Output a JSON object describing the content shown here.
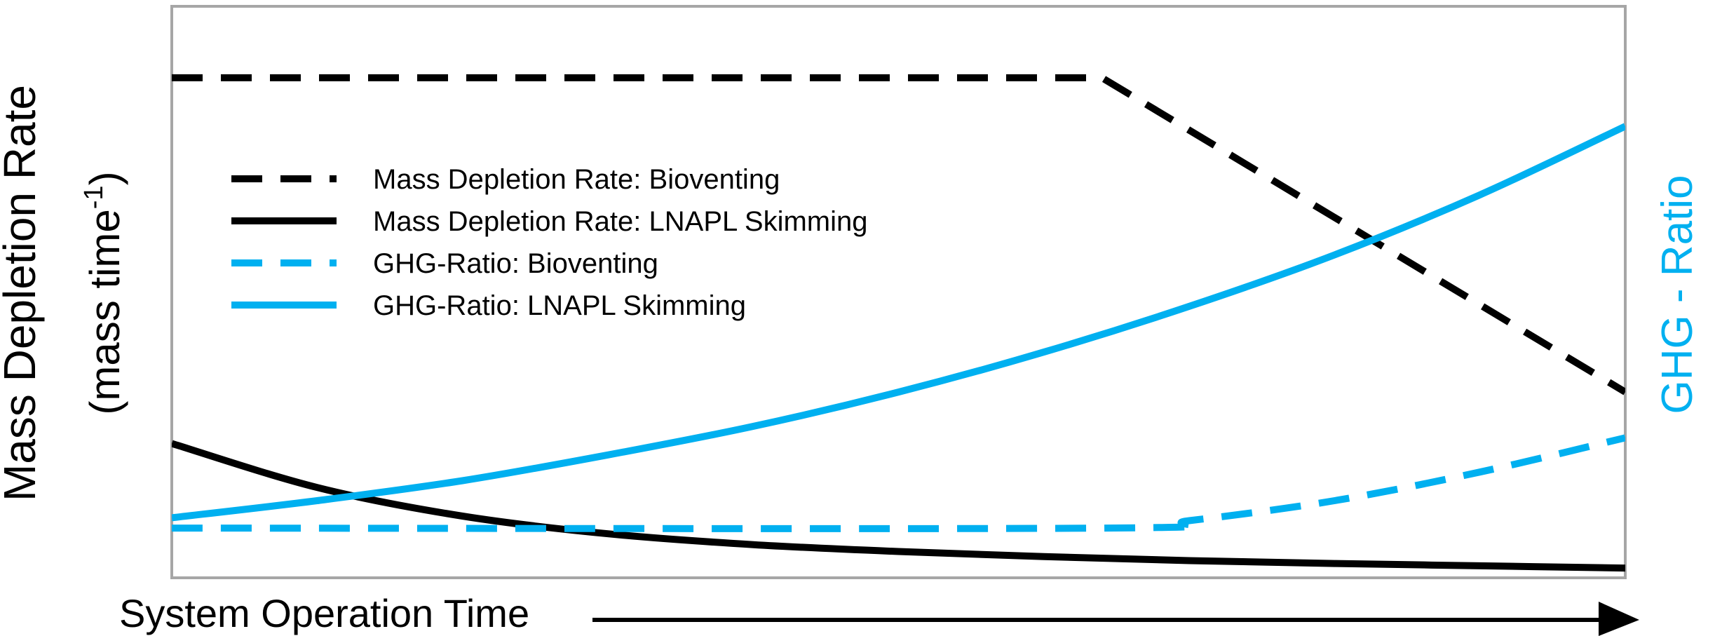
{
  "chart_data": {
    "type": "line",
    "title": "",
    "xlabel": "System Operation Time",
    "ylabel": "Mass Depletion Rate",
    "ylabel_unit_main": "(mass time",
    "ylabel_unit_sup": "-1",
    "ylabel_unit_close": ")",
    "y2label": "GHG - Ratio",
    "x_ticks": "none",
    "y_ticks": "none",
    "grid": false,
    "legend_position": "top-left",
    "xlim": [
      0,
      1
    ],
    "ylim": [
      0,
      1
    ],
    "colors": {
      "black": "#000000",
      "blue": "#00b0f0",
      "frame": "#a6a6a6"
    },
    "series": [
      {
        "name": "Mass Depletion Rate: Bioventing",
        "color": "#000000",
        "dash": "dashed",
        "x": [
          0,
          0.64,
          1.0
        ],
        "y": [
          0.875,
          0.875,
          0.325
        ]
      },
      {
        "name": "Mass Depletion Rate: LNAPL Skimming",
        "color": "#000000",
        "dash": "solid",
        "x": [
          0,
          0.1,
          0.2,
          0.3,
          0.4,
          0.5,
          0.6,
          0.7,
          0.8,
          0.9,
          1.0
        ],
        "y": [
          0.235,
          0.158,
          0.108,
          0.077,
          0.058,
          0.046,
          0.037,
          0.03,
          0.025,
          0.021,
          0.017
        ]
      },
      {
        "name": "GHG-Ratio: Bioventing",
        "color": "#00b0f0",
        "dash": "dashed",
        "x": [
          0,
          0.64,
          0.7,
          0.8,
          0.9,
          1.0
        ],
        "y": [
          0.087,
          0.087,
          0.1,
          0.135,
          0.185,
          0.245
        ]
      },
      {
        "name": "GHG-Ratio: LNAPL Skimming",
        "color": "#00b0f0",
        "dash": "solid",
        "x": [
          0,
          0.1,
          0.2,
          0.3,
          0.4,
          0.5,
          0.6,
          0.7,
          0.8,
          0.9,
          1.0
        ],
        "y": [
          0.105,
          0.135,
          0.17,
          0.215,
          0.265,
          0.325,
          0.395,
          0.475,
          0.565,
          0.67,
          0.79
        ]
      }
    ]
  }
}
